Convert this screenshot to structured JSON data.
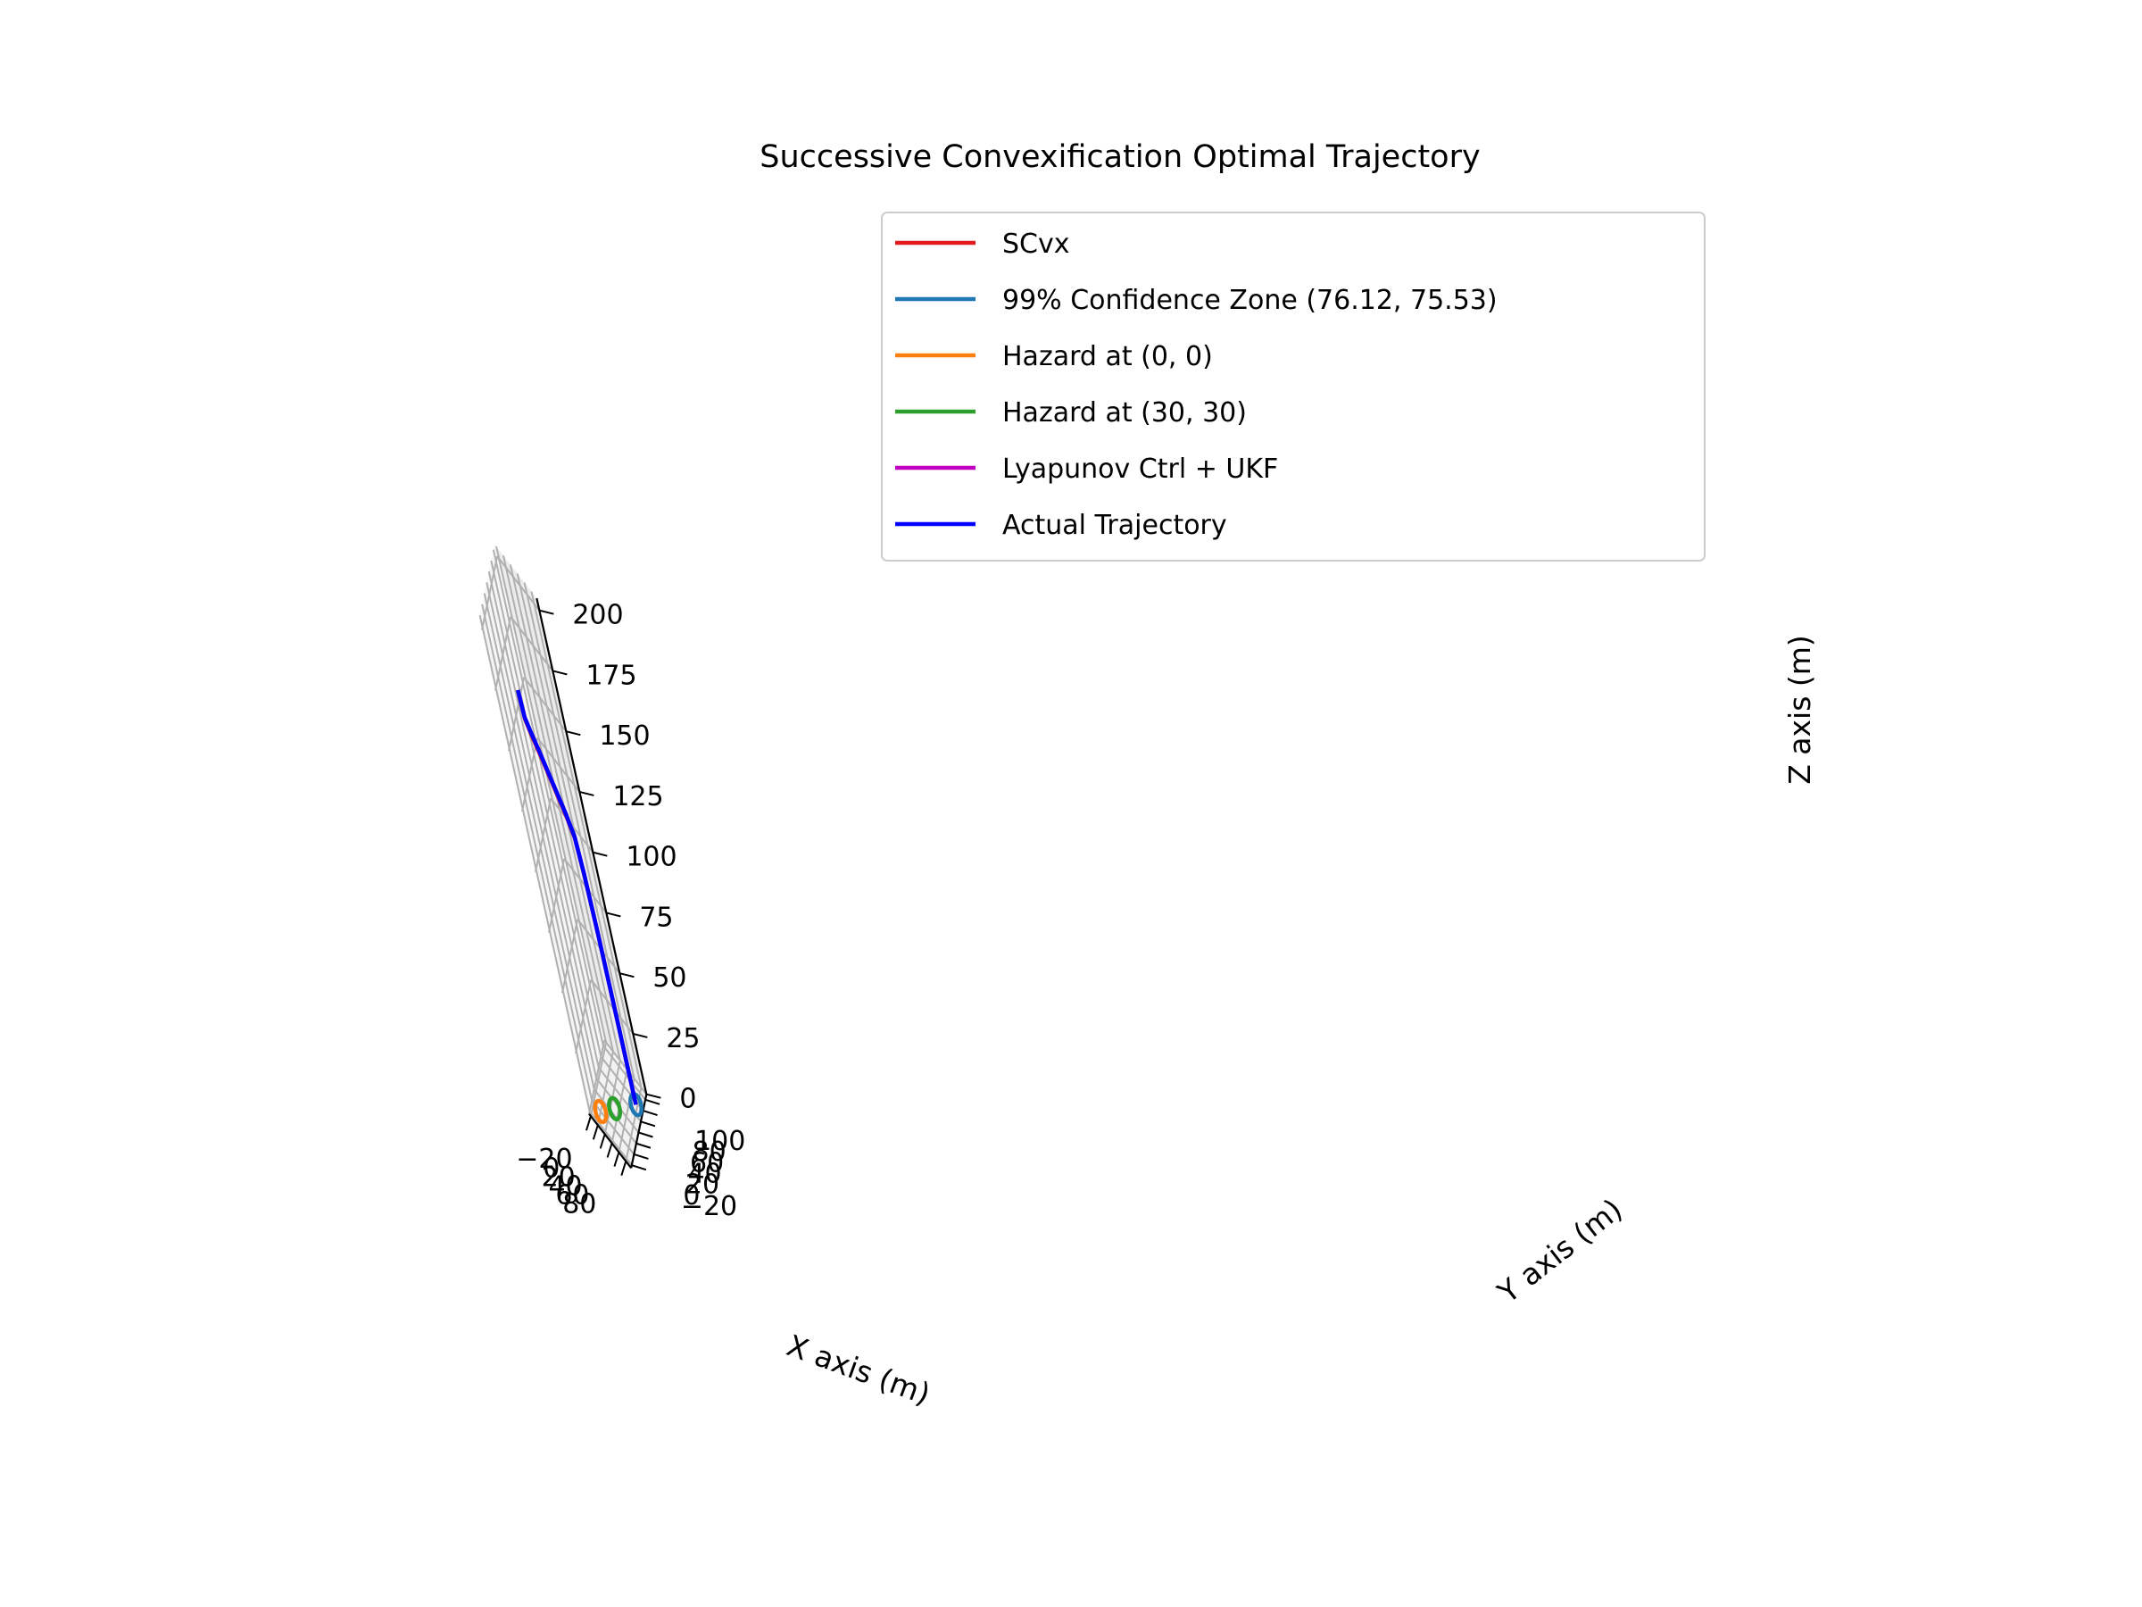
{
  "chart_data": {
    "type": "line3d",
    "title": "Successive Convexification Optimal Trajectory",
    "xlabel": "X axis (m)",
    "ylabel": "Y axis (m)",
    "zlabel": "Z axis (m)",
    "xlim": [
      -25,
      95
    ],
    "ylim": [
      -25,
      110
    ],
    "zlim": [
      0,
      205
    ],
    "xticks": [
      "−20",
      "0",
      "20",
      "40",
      "60",
      "80"
    ],
    "xtick_values": [
      -20,
      0,
      20,
      40,
      60,
      80
    ],
    "yticks": [
      "−20",
      "0",
      "20",
      "40",
      "60",
      "80",
      "100"
    ],
    "ytick_values": [
      -20,
      0,
      20,
      40,
      60,
      80,
      100
    ],
    "zticks": [
      "0",
      "25",
      "50",
      "75",
      "100",
      "125",
      "150",
      "175",
      "200"
    ],
    "ztick_values": [
      0,
      25,
      50,
      75,
      100,
      125,
      150,
      175,
      200
    ],
    "grid": true,
    "legend_position": "top-right",
    "series": [
      {
        "name": "SCvx",
        "color": "#e41a1c",
        "kind": "path",
        "points": [
          [
            -5,
            50,
            160
          ],
          [
            -3,
            51,
            150
          ],
          [
            5,
            54,
            145
          ],
          [
            20,
            58,
            138
          ],
          [
            40,
            63,
            128
          ],
          [
            60,
            68,
            118
          ],
          [
            72,
            71,
            110
          ],
          [
            75,
            73,
            95
          ],
          [
            76,
            75,
            70
          ],
          [
            76.12,
            75.53,
            40
          ],
          [
            76,
            75.5,
            20
          ],
          [
            76.1,
            75.5,
            0
          ]
        ]
      },
      {
        "name": "99% Confidence Zone (76.12, 75.53)",
        "color": "#1f77b4",
        "kind": "circle",
        "center": [
          76.12,
          75.53
        ],
        "radius": 15
      },
      {
        "name": "Hazard at (0, 0)",
        "color": "#ff7f0e",
        "kind": "circle",
        "center": [
          0,
          0
        ],
        "radius": 15
      },
      {
        "name": "Hazard at (30, 30)",
        "color": "#2ca02c",
        "kind": "circle",
        "center": [
          30,
          30
        ],
        "radius": 15
      },
      {
        "name": "Lyapunov Ctrl + UKF",
        "color": "#bf00bf",
        "kind": "path",
        "points": [
          [
            -5,
            50,
            162
          ],
          [
            -3,
            51,
            151
          ],
          [
            5,
            54,
            146
          ],
          [
            20,
            58,
            139
          ],
          [
            40,
            63,
            129
          ],
          [
            60,
            68,
            119
          ],
          [
            72,
            71,
            111
          ],
          [
            75,
            73,
            96
          ],
          [
            76,
            75,
            71
          ],
          [
            76.12,
            75.53,
            41
          ],
          [
            76,
            75.5,
            21
          ],
          [
            76.1,
            75.5,
            0
          ]
        ]
      },
      {
        "name": "Actual Trajectory",
        "color": "#0000ff",
        "kind": "path",
        "points": [
          [
            -5,
            50,
            162
          ],
          [
            -3,
            51,
            151
          ],
          [
            5,
            54,
            146
          ],
          [
            20,
            58,
            139
          ],
          [
            40,
            63,
            129
          ],
          [
            60,
            68,
            119
          ],
          [
            72,
            71,
            111
          ],
          [
            75,
            73,
            96
          ],
          [
            76,
            75,
            71
          ],
          [
            76.12,
            75.53,
            41
          ],
          [
            76,
            75.5,
            21
          ],
          [
            76.1,
            75.5,
            0
          ]
        ]
      }
    ]
  }
}
